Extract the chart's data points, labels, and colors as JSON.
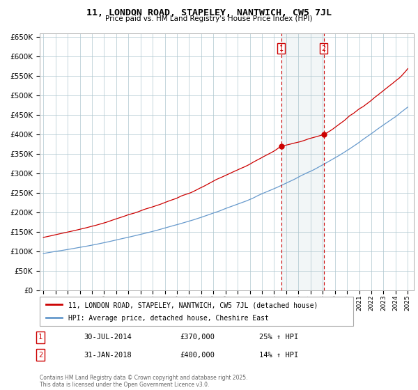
{
  "title": "11, LONDON ROAD, STAPELEY, NANTWICH, CW5 7JL",
  "subtitle": "Price paid vs. HM Land Registry's House Price Index (HPI)",
  "legend_line1": "11, LONDON ROAD, STAPELEY, NANTWICH, CW5 7JL (detached house)",
  "legend_line2": "HPI: Average price, detached house, Cheshire East",
  "footer": "Contains HM Land Registry data © Crown copyright and database right 2025.\nThis data is licensed under the Open Government Licence v3.0.",
  "sale1_date": "30-JUL-2014",
  "sale1_price": "£370,000",
  "sale1_hpi": "25% ↑ HPI",
  "sale2_date": "31-JAN-2018",
  "sale2_price": "£400,000",
  "sale2_hpi": "14% ↑ HPI",
  "sale1_x": 2014.58,
  "sale2_x": 2018.08,
  "sale1_y": 370000,
  "sale2_y": 400000,
  "line_color_red": "#cc0000",
  "line_color_blue": "#6699cc",
  "vline_color": "#cc0000",
  "background_color": "#ffffff",
  "grid_color": "#aec6cf",
  "ylim": [
    0,
    660000
  ],
  "xlim_start": 1994.7,
  "xlim_end": 2025.5
}
